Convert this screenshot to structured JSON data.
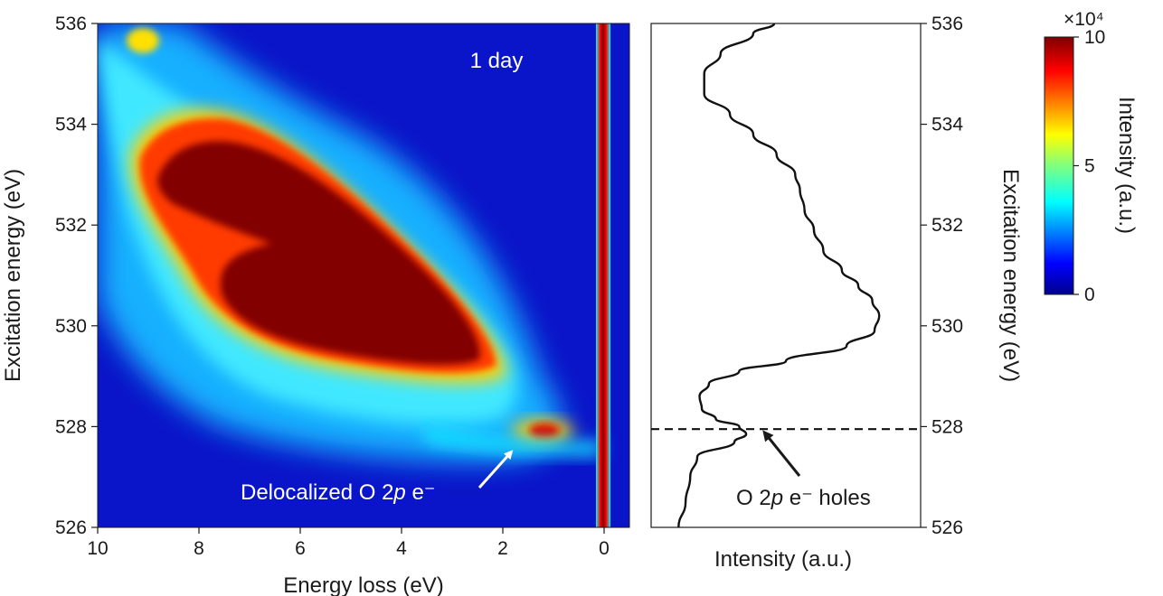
{
  "chart_data": [
    {
      "type": "heatmap",
      "panel_label": "1 day",
      "xlabel": "Energy loss (eV)",
      "ylabel": "Excitation energy (eV)",
      "xlim": [
        10,
        -0.5
      ],
      "ylim": [
        526,
        536
      ],
      "xticks": [
        "10",
        "8",
        "6",
        "4",
        "2",
        "0"
      ],
      "yticks": [
        "526",
        "528",
        "530",
        "532",
        "534",
        "536"
      ],
      "colorbar": {
        "label": "Intensity (a.u.)",
        "range": [
          0,
          10
        ],
        "multiplier": "×10⁴",
        "ticks": [
          "0",
          "5",
          "10"
        ],
        "colormap": "jet"
      },
      "features": [
        {
          "name": "elastic line",
          "energy_loss": 0,
          "excitation_range": [
            526,
            536
          ],
          "intensity": 10
        },
        {
          "name": "main fluorescence band",
          "center_loss": 5,
          "center_excitation": 531,
          "intensity": 10
        },
        {
          "name": "O 2p feature",
          "energy_loss": 1.2,
          "excitation_energy": 527.9,
          "intensity": 8.5
        }
      ],
      "annotation": {
        "text_before": "Delocalized O 2",
        "text_italic": "p",
        "text_after": " e⁻",
        "points_to_loss": 1.8,
        "points_to_excitation": 527.7
      }
    },
    {
      "type": "line",
      "xlabel": "Intensity (a.u.)",
      "ylabel": "Excitation energy (eV)",
      "ylim": [
        526,
        536
      ],
      "yticks": [
        "526",
        "528",
        "530",
        "532",
        "534",
        "536"
      ],
      "series": [
        {
          "excitation": [
            526.0,
            526.5,
            527.0,
            527.4,
            527.7,
            527.85,
            528.0,
            528.15,
            528.35,
            528.6,
            528.85,
            529.1,
            529.3,
            529.6,
            529.9,
            530.2,
            530.5,
            530.8,
            531.1,
            531.5,
            531.9,
            532.3,
            532.7,
            533.0,
            533.4,
            533.8,
            534.2,
            534.6,
            535.0,
            535.4,
            535.8,
            536.0
          ],
          "intensity": [
            0.04,
            0.07,
            0.09,
            0.12,
            0.28,
            0.33,
            0.3,
            0.2,
            0.14,
            0.13,
            0.17,
            0.3,
            0.5,
            0.76,
            0.88,
            0.9,
            0.87,
            0.81,
            0.74,
            0.66,
            0.62,
            0.58,
            0.56,
            0.54,
            0.46,
            0.36,
            0.26,
            0.15,
            0.15,
            0.22,
            0.36,
            0.45
          ]
        }
      ],
      "reference_line": {
        "excitation": 527.95,
        "style": "dashed"
      },
      "annotation": {
        "text_before": "O 2",
        "text_italic": "p",
        "text_after": " e⁻ holes",
        "points_to_excitation": 527.85
      }
    }
  ]
}
